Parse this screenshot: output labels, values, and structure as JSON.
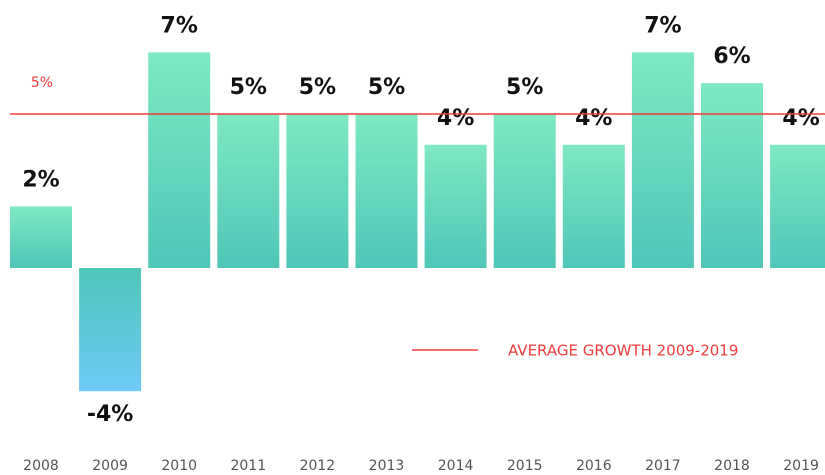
{
  "chart_data": {
    "type": "bar",
    "categories": [
      "2008",
      "2009",
      "2010",
      "2011",
      "2012",
      "2013",
      "2014",
      "2015",
      "2016",
      "2017",
      "2018",
      "2019"
    ],
    "values": [
      2,
      -4,
      7,
      5,
      5,
      5,
      4,
      5,
      4,
      7,
      6,
      4
    ],
    "value_labels": [
      "2%",
      "-4%",
      "7%",
      "5%",
      "5%",
      "5%",
      "4%",
      "5%",
      "4%",
      "7%",
      "6%",
      "4%"
    ],
    "ylim": [
      -6,
      8
    ],
    "average": {
      "name": "AVERAGE GROWTH 2009-2019",
      "value": 5,
      "label": "5%",
      "color": "#f03c3c"
    }
  }
}
